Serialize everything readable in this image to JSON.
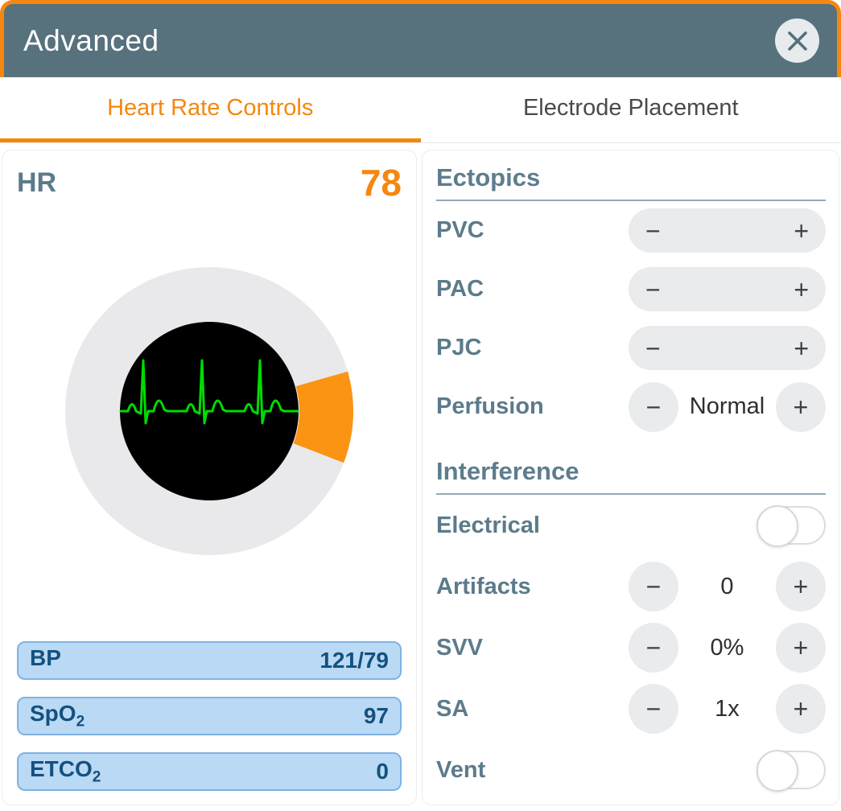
{
  "colors": {
    "accent": "#F5870F",
    "wedge": "#FB9412",
    "header_bg": "#57717D",
    "slate": "#5C7B8A",
    "heading": "#5E7D8C",
    "rule": "#94AAB4",
    "pill_bg": "#E9EBED",
    "symbol": "#414141",
    "value": "#2E2E2E",
    "tab_inactive": "#4A4A4A",
    "close_bg": "#E7EBEE",
    "close_x": "#53707E",
    "toggle_border": "#DCDCDC",
    "ring": "#E9E9EB",
    "face": "#000000",
    "ecg": "#00DC00",
    "vital_bg": "#BAD9F4",
    "vital_border": "#7FB2E4",
    "vital_text": "#14517F"
  },
  "dialog": {
    "title": "Advanced"
  },
  "tabs": [
    {
      "label": "Heart Rate Controls",
      "active": true
    },
    {
      "label": "Electrode Placement",
      "active": false
    }
  ],
  "hr_panel": {
    "label": "HR",
    "value": "78"
  },
  "vitals": [
    {
      "label": "BP",
      "sub": "",
      "value": "121/79"
    },
    {
      "label": "SpO",
      "sub": "2",
      "value": "97"
    },
    {
      "label": "ETCO",
      "sub": "2",
      "value": "0"
    }
  ],
  "symbols": {
    "minus": "−",
    "plus": "+"
  },
  "sections": [
    {
      "title": "Ectopics",
      "rows": [
        {
          "label": "PVC",
          "type": "pill"
        },
        {
          "label": "PAC",
          "type": "pill"
        },
        {
          "label": "PJC",
          "type": "pill"
        },
        {
          "label": "Perfusion",
          "type": "value",
          "value": "Normal"
        }
      ]
    },
    {
      "title": "Interference",
      "rows": [
        {
          "label": "Electrical",
          "type": "toggle",
          "state": "off"
        },
        {
          "label": "Artifacts",
          "type": "value",
          "value": "0"
        },
        {
          "label": "SVV",
          "type": "value",
          "value": "0%"
        },
        {
          "label": "SA",
          "type": "value",
          "value": "1x"
        },
        {
          "label": "Vent",
          "type": "toggle",
          "state": "off"
        }
      ]
    }
  ]
}
